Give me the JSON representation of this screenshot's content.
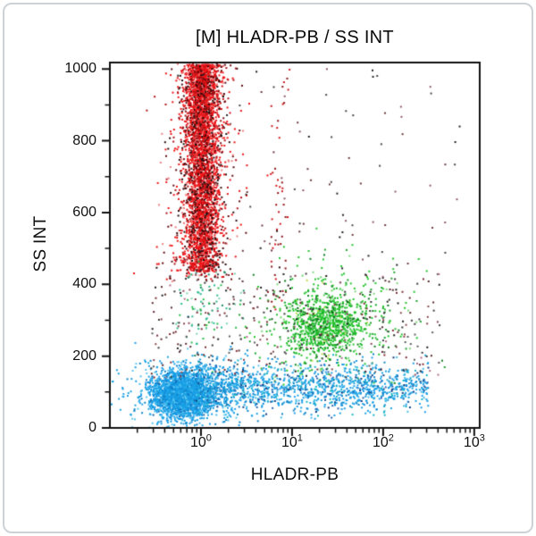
{
  "chart_data": {
    "type": "scatter",
    "title": "[M] HLADR-PB / SS INT",
    "xlabel": "HLADR-PB",
    "ylabel": "SS INT",
    "x_scale": "log",
    "x_tick_base": "10",
    "x_tick_exponents": [
      0,
      1,
      2,
      3
    ],
    "x_log_range": [
      -1.0,
      3.06
    ],
    "y_ticks": [
      0,
      200,
      400,
      600,
      800,
      1000
    ],
    "y_minor_ticks": [
      100,
      300,
      500,
      700,
      900
    ],
    "y_range": [
      0,
      1018
    ],
    "grid": false,
    "legend": "none",
    "seed": 1337,
    "populations": [
      {
        "name": "red-population-core",
        "count": 3000,
        "x": {
          "dist": "gauss",
          "mean": 0.015,
          "sd": 0.095
        },
        "y": {
          "dist": "uniform",
          "lo": 435,
          "hi": 1012,
          "pow": 1.2,
          "from": "hi"
        },
        "colors": [
          [
            "#ee1316",
            0.62
          ],
          [
            "#d11116",
            0.12
          ],
          [
            "#a80e12",
            0.08
          ],
          [
            "#6e0b0e",
            0.06
          ],
          [
            "#2a0607",
            0.05
          ],
          [
            "#f56a6a",
            0.07
          ]
        ]
      },
      {
        "name": "red-population-halo",
        "count": 620,
        "x": {
          "dist": "gauss",
          "mean": 0.0,
          "sd": 0.205
        },
        "y": {
          "dist": "uniform",
          "lo": 408,
          "hi": 1015
        },
        "colors": [
          [
            "#ee1316",
            0.45
          ],
          [
            "#b00f14",
            0.2
          ],
          [
            "#5f0c10",
            0.15
          ],
          [
            "#27090b",
            0.1
          ],
          [
            "#ef8080",
            0.1
          ]
        ]
      },
      {
        "name": "red-population-dark-speckle",
        "count": 300,
        "x": {
          "dist": "gauss",
          "mean": 0.02,
          "sd": 0.115
        },
        "y": {
          "dist": "uniform",
          "lo": 440,
          "hi": 1008
        },
        "colors": [
          [
            "#3a0d0f",
            0.45
          ],
          [
            "#141414",
            0.2
          ],
          [
            "#7c1014",
            0.35
          ]
        ]
      },
      {
        "name": "red-doublet-streak",
        "count": 55,
        "x": {
          "dist": "gauss",
          "mean": 0.85,
          "sd": 0.06
        },
        "y": {
          "dist": "uniform",
          "lo": 330,
          "hi": 1005,
          "pow": 0.8,
          "from": "hi"
        },
        "colors": [
          [
            "#d0181d",
            0.55
          ],
          [
            "#8c1216",
            0.25
          ],
          [
            "#2a0e10",
            0.2
          ]
        ]
      },
      {
        "name": "green-population-core",
        "count": 800,
        "x": {
          "dist": "gauss",
          "mean": 1.36,
          "sd": 0.21
        },
        "y": {
          "dist": "gauss",
          "mean": 288,
          "sd": 46
        },
        "colors": [
          [
            "#22c42c",
            0.6
          ],
          [
            "#18a826",
            0.14
          ],
          [
            "#63d563",
            0.1
          ],
          [
            "#0f821c",
            0.08
          ],
          [
            "#bfdc55",
            0.04
          ],
          [
            "#0a5a14",
            0.04
          ]
        ]
      },
      {
        "name": "green-population-halo",
        "count": 340,
        "x": {
          "dist": "gauss",
          "mean": 1.47,
          "sd": 0.46
        },
        "y": {
          "dist": "gauss",
          "mean": 297,
          "sd": 88
        },
        "colors": [
          [
            "#22c42c",
            0.5
          ],
          [
            "#1da32e",
            0.22
          ],
          [
            "#7ed87e",
            0.14
          ],
          [
            "#0f7a20",
            0.14
          ]
        ]
      },
      {
        "name": "teal-scatter-below-red",
        "count": 85,
        "x": {
          "dist": "gauss",
          "mean": 0.05,
          "sd": 0.17
        },
        "y": {
          "dist": "gauss",
          "mean": 330,
          "sd": 72
        },
        "colors": [
          [
            "#2ab98e",
            0.35
          ],
          [
            "#25bc4a",
            0.3
          ],
          [
            "#7fd3b4",
            0.2
          ],
          [
            "#188a64",
            0.15
          ]
        ]
      },
      {
        "name": "blue-population-core",
        "count": 2350,
        "x": {
          "dist": "gauss",
          "mean": -0.22,
          "sd": 0.15
        },
        "y": {
          "dist": "gauss",
          "mean": 92,
          "sd": 30
        },
        "colors": [
          [
            "#1aa0e6",
            0.7
          ],
          [
            "#0c86d8",
            0.13
          ],
          [
            "#4fc0f0",
            0.11
          ],
          [
            "#1168ac",
            0.06
          ]
        ]
      },
      {
        "name": "blue-population-band",
        "count": 1480,
        "x": {
          "dist": "uniform",
          "lo": -0.05,
          "hi": 2.5,
          "pow": 1.35
        },
        "y": {
          "dist": "gauss",
          "mean": 112,
          "sd": 33
        },
        "colors": [
          [
            "#1aa0e6",
            0.52
          ],
          [
            "#0f85c8",
            0.16
          ],
          [
            "#45bce8",
            0.1
          ],
          [
            "#17b4c6",
            0.1
          ],
          [
            "#2a64b0",
            0.06
          ],
          [
            "#0d3f86",
            0.06
          ]
        ]
      },
      {
        "name": "blue-population-halo",
        "count": 430,
        "x": {
          "dist": "gauss",
          "mean": -0.14,
          "sd": 0.37
        },
        "y": {
          "dist": "gauss",
          "mean": 96,
          "sd": 57
        },
        "colors": [
          [
            "#1aa0e6",
            0.6
          ],
          [
            "#5ec8f0",
            0.22
          ],
          [
            "#0f85c8",
            0.18
          ]
        ]
      },
      {
        "name": "dark-scatter-mid",
        "count": 330,
        "x": {
          "dist": "uniform",
          "lo": -0.55,
          "hi": 2.62
        },
        "y": {
          "dist": "uniform",
          "lo": 140,
          "hi": 430
        },
        "colors": [
          [
            "#5a2a2e",
            0.22
          ],
          [
            "#3a3a3a",
            0.2
          ],
          [
            "#7c2c34",
            0.16
          ],
          [
            "#8a4a52",
            0.14
          ],
          [
            "#5e5e5e",
            0.12
          ],
          [
            "#b06a8a",
            0.08
          ],
          [
            "#1d1d1d",
            0.08
          ]
        ]
      },
      {
        "name": "sparse-scatter-upper",
        "count": 75,
        "x": {
          "dist": "uniform",
          "lo": 0.25,
          "hi": 2.85
        },
        "y": {
          "dist": "uniform",
          "lo": 430,
          "hi": 1000
        },
        "colors": [
          [
            "#6a3a3e",
            0.3
          ],
          [
            "#474747",
            0.3
          ],
          [
            "#8c5a62",
            0.2
          ],
          [
            "#202020",
            0.2
          ]
        ]
      }
    ]
  },
  "colors": {
    "axis": "#111111",
    "text": "#0a0a0a",
    "card_border": "#ccd2d6",
    "background": "#ffffff"
  }
}
